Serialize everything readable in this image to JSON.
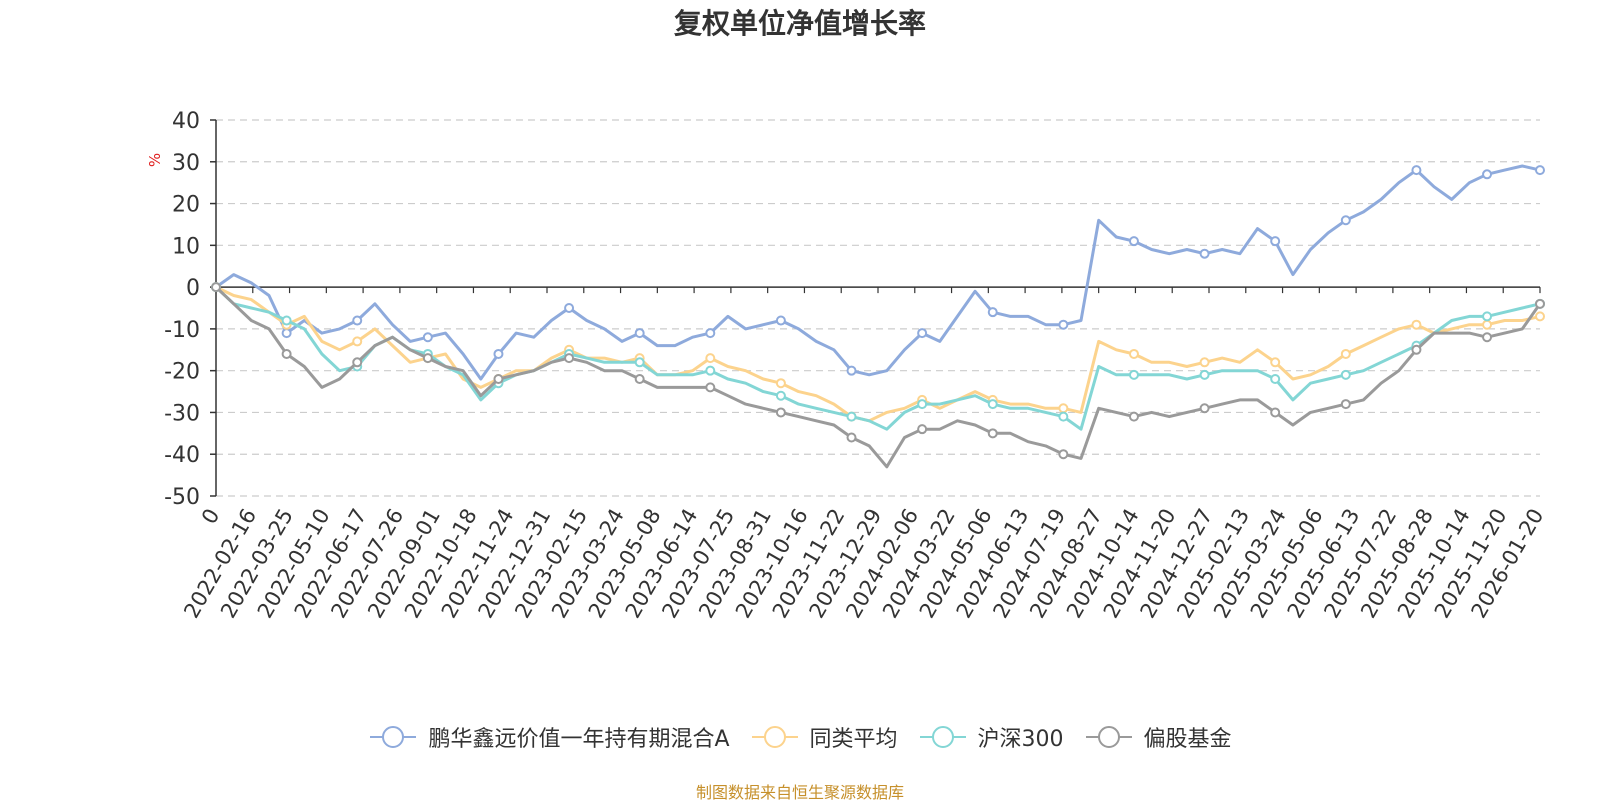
{
  "title": "复权单位净值增长率",
  "footer": "制图数据来自恒生聚源数据库",
  "chart_data": {
    "type": "line",
    "title": "复权单位净值增长率",
    "ylabel": "%",
    "ylim": [
      -50,
      40
    ],
    "yticks": [
      40,
      30,
      20,
      10,
      0,
      -10,
      -20,
      -30,
      -40,
      -50
    ],
    "grid": true,
    "legend_position": "bottom",
    "x_tick_labels": [
      "0",
      "2022-02-16",
      "2022-03-25",
      "2022-05-10",
      "2022-06-17",
      "2022-07-26",
      "2022-09-01",
      "2022-10-18",
      "2022-11-24",
      "2022-12-31",
      "2023-02-15",
      "2023-03-24",
      "2023-05-08",
      "2023-06-14",
      "2023-07-25",
      "2023-08-31",
      "2023-10-16",
      "2023-11-22",
      "2023-12-29",
      "2024-02-06",
      "2024-03-22",
      "2024-05-06",
      "2024-06-13",
      "2024-07-19",
      "2024-08-27",
      "2024-10-14",
      "2024-11-20",
      "2024-12-27",
      "2025-02-13",
      "2025-03-24",
      "2025-05-06",
      "2025-06-13",
      "2025-07-22",
      "2025-08-28",
      "2025-10-14",
      "2025-11-20",
      "2026-01-20"
    ],
    "x": [
      "2022-01-04",
      "2022-01-27",
      "2022-02-16",
      "2022-03-08",
      "2022-03-25",
      "2022-04-13",
      "2022-05-10",
      "2022-05-30",
      "2022-06-17",
      "2022-07-05",
      "2022-07-26",
      "2022-08-12",
      "2022-09-01",
      "2022-09-22",
      "2022-10-18",
      "2022-11-04",
      "2022-11-24",
      "2022-12-13",
      "2022-12-31",
      "2023-01-20",
      "2023-02-15",
      "2023-03-06",
      "2023-03-24",
      "2023-04-14",
      "2023-05-08",
      "2023-05-26",
      "2023-06-14",
      "2023-07-06",
      "2023-07-25",
      "2023-08-11",
      "2023-08-31",
      "2023-09-22",
      "2023-10-16",
      "2023-11-02",
      "2023-11-22",
      "2023-12-11",
      "2023-12-29",
      "2024-01-18",
      "2024-02-06",
      "2024-03-01",
      "2024-03-22",
      "2024-04-12",
      "2024-05-06",
      "2024-05-24",
      "2024-06-13",
      "2024-07-02",
      "2024-07-19",
      "2024-08-07",
      "2024-08-27",
      "2024-09-20",
      "2024-09-30",
      "2024-10-14",
      "2024-10-31",
      "2024-11-20",
      "2024-12-09",
      "2024-12-27",
      "2025-01-17",
      "2025-02-13",
      "2025-03-05",
      "2025-03-24",
      "2025-04-03",
      "2025-04-08",
      "2025-05-06",
      "2025-05-23",
      "2025-06-13",
      "2025-07-02",
      "2025-07-22",
      "2025-08-08",
      "2025-08-28",
      "2025-09-18",
      "2025-10-14",
      "2025-10-31",
      "2025-11-20",
      "2025-12-10",
      "2025-12-30",
      "2026-01-20"
    ],
    "series": [
      {
        "name": "鹏华鑫远价值一年持有期混合A",
        "color": "#8eaadc",
        "values": [
          0,
          3,
          1,
          -2,
          -11,
          -8,
          -11,
          -10,
          -8,
          -4,
          -9,
          -13,
          -12,
          -11,
          -16,
          -22,
          -16,
          -11,
          -12,
          -8,
          -5,
          -8,
          -10,
          -13,
          -11,
          -14,
          -14,
          -12,
          -11,
          -7,
          -10,
          -9,
          -8,
          -10,
          -13,
          -15,
          -20,
          -21,
          -20,
          -15,
          -11,
          -13,
          -7,
          -1,
          -6,
          -7,
          -7,
          -9,
          -9,
          -8,
          16,
          12,
          11,
          9,
          8,
          9,
          8,
          9,
          8,
          14,
          11,
          3,
          9,
          13,
          16,
          18,
          21,
          25,
          28,
          24,
          21,
          25,
          27,
          28,
          29,
          28
        ]
      },
      {
        "name": "同类平均",
        "color": "#fcd38d",
        "values": [
          0,
          -2,
          -3,
          -6,
          -9,
          -7,
          -13,
          -15,
          -13,
          -10,
          -14,
          -18,
          -17,
          -16,
          -22,
          -24,
          -22,
          -20,
          -20,
          -17,
          -15,
          -17,
          -17,
          -18,
          -17,
          -21,
          -21,
          -20,
          -17,
          -19,
          -20,
          -22,
          -23,
          -25,
          -26,
          -28,
          -31,
          -32,
          -30,
          -29,
          -27,
          -29,
          -27,
          -25,
          -27,
          -28,
          -28,
          -29,
          -29,
          -30,
          -13,
          -15,
          -16,
          -18,
          -18,
          -19,
          -18,
          -17,
          -18,
          -15,
          -18,
          -22,
          -21,
          -19,
          -16,
          -14,
          -12,
          -10,
          -9,
          -11,
          -10,
          -9,
          -9,
          -8,
          -8,
          -7
        ]
      },
      {
        "name": "沪深300",
        "color": "#83d6d5",
        "values": [
          0,
          -4,
          -5,
          -6,
          -8,
          -10,
          -16,
          -20,
          -19,
          -14,
          -12,
          -15,
          -16,
          -19,
          -21,
          -27,
          -23,
          -21,
          -20,
          -18,
          -16,
          -17,
          -18,
          -18,
          -18,
          -21,
          -21,
          -21,
          -20,
          -22,
          -23,
          -25,
          -26,
          -28,
          -29,
          -30,
          -31,
          -32,
          -34,
          -30,
          -28,
          -28,
          -27,
          -26,
          -28,
          -29,
          -29,
          -30,
          -31,
          -34,
          -19,
          -21,
          -21,
          -21,
          -21,
          -22,
          -21,
          -20,
          -20,
          -20,
          -22,
          -27,
          -23,
          -22,
          -21,
          -20,
          -18,
          -16,
          -14,
          -11,
          -8,
          -7,
          -7,
          -6,
          -5,
          -4
        ]
      },
      {
        "name": "偏股基金",
        "color": "#9a9a9a",
        "values": [
          0,
          -4,
          -8,
          -10,
          -16,
          -19,
          -24,
          -22,
          -18,
          -14,
          -12,
          -15,
          -17,
          -19,
          -20,
          -26,
          -22,
          -21,
          -20,
          -18,
          -17,
          -18,
          -20,
          -20,
          -22,
          -24,
          -24,
          -24,
          -24,
          -26,
          -28,
          -29,
          -30,
          -31,
          -32,
          -33,
          -36,
          -38,
          -43,
          -36,
          -34,
          -34,
          -32,
          -33,
          -35,
          -35,
          -37,
          -38,
          -40,
          -41,
          -29,
          -30,
          -31,
          -30,
          -31,
          -30,
          -29,
          -28,
          -27,
          -27,
          -30,
          -33,
          -30,
          -29,
          -28,
          -27,
          -23,
          -20,
          -15,
          -11,
          -11,
          -11,
          -12,
          -11,
          -10,
          -4
        ]
      }
    ]
  }
}
